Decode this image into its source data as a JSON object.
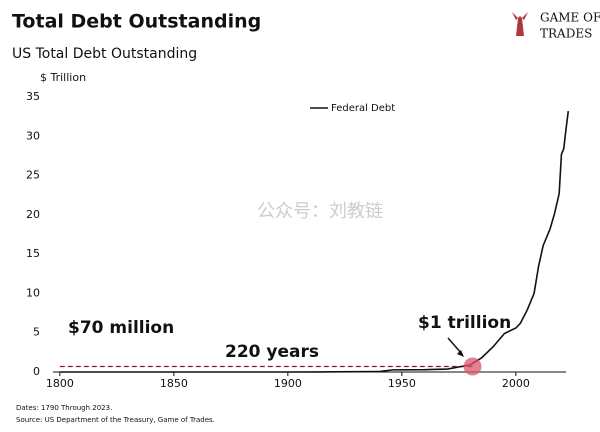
{
  "logo": [
    "GAME OF",
    "TRADES"
  ],
  "watermark": "公众号：刘教链",
  "footnotes": [
    "Dates: 1790 Through 2023.",
    "Source: US Department of the Treasury, Game of Trades."
  ],
  "chart_data": {
    "type": "line",
    "title": "Total Debt Outstanding",
    "subtitle": "US Total Debt Outstanding",
    "y_label": "$ Trillion",
    "x": [
      1800,
      1850,
      1900,
      1915,
      1920,
      1940,
      1946,
      1960,
      1970,
      1980,
      1985,
      1990,
      1995,
      2000,
      2002,
      2005,
      2008,
      2010,
      2012,
      2015,
      2017,
      2019,
      2020,
      2021,
      2022,
      2023
    ],
    "series": [
      {
        "name": "Federal Debt",
        "color": "#111111",
        "values": [
          0.0001,
          0.0001,
          0.0012,
          0.003,
          0.026,
          0.05,
          0.27,
          0.29,
          0.37,
          0.91,
          1.8,
          3.2,
          4.9,
          5.6,
          6.2,
          7.9,
          10.0,
          13.5,
          16.1,
          18.2,
          20.2,
          22.7,
          27.7,
          28.4,
          30.9,
          33.2
        ]
      }
    ],
    "xlim": [
      1797,
      2022
    ],
    "xticks": [
      1800,
      1850,
      1900,
      1950,
      2000
    ],
    "ylim": [
      0,
      35
    ],
    "yticks": [
      0,
      5,
      10,
      15,
      20,
      25,
      30,
      35
    ],
    "legend": "top",
    "annotations": [
      "$70 million",
      "$1 trillion",
      "220 years"
    ],
    "reference_line": {
      "x": [
        1800,
        1981
      ],
      "y": 0.7,
      "color": "#8b1a2b"
    },
    "marker": {
      "x": 1981,
      "y": 0.7,
      "color": "#d9556e"
    }
  }
}
